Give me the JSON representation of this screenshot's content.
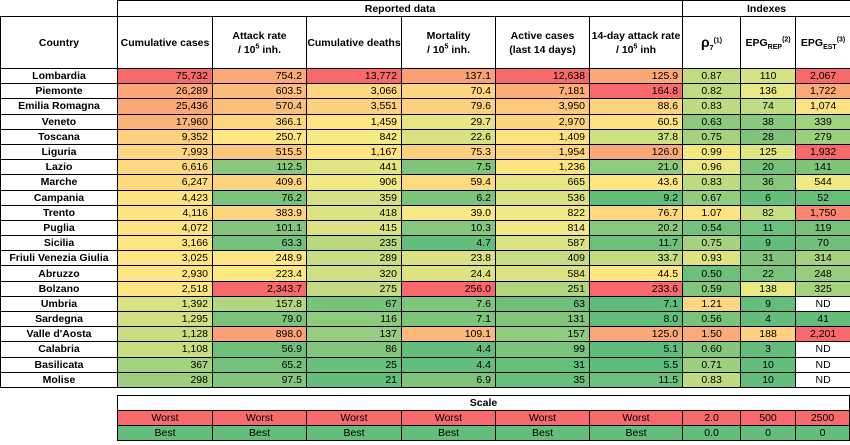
{
  "header": {
    "group_reported": "Reported data",
    "group_indexes": "Indexes",
    "country": "Country",
    "cum_cases": "Cumulative cases",
    "attack_rate": "Attack rate",
    "attack_rate_unit_pre": "/ 10",
    "attack_rate_unit_sup": "5",
    "attack_rate_unit_post": " inh.",
    "cum_deaths": "Cumulative deaths",
    "mortality": "Mortality",
    "mortality_unit_pre": "/ 10",
    "mortality_unit_sup": "5",
    "mortality_unit_post": " inh.",
    "active_cases": "Active cases",
    "active_cases_sub": "(last 14 days)",
    "attack14": "14-day attack rate",
    "attack14_unit_pre": "/ 10",
    "attack14_unit_sup": "5",
    "attack14_unit_post": " inh",
    "rho": "ρ",
    "rho_sub": "7",
    "rho_sup": "(1)",
    "epg_rep": "EPG",
    "epg_rep_sub": "REP",
    "epg_rep_sup": "(2)",
    "epg_est": "EPG",
    "epg_est_sub": "EST",
    "epg_est_sup": "(3)"
  },
  "rows": [
    {
      "country": "Lombardia",
      "cells": [
        [
          "75,732",
          "#f8696b"
        ],
        [
          "754.2",
          "#fbaa77"
        ],
        [
          "13,772",
          "#f8696b"
        ],
        [
          "137.1",
          "#faa075"
        ],
        [
          "12,638",
          "#f8696b"
        ],
        [
          "125.9",
          "#fba877"
        ],
        [
          "0.87",
          "#c2dc80"
        ],
        [
          "110",
          "#d6e382"
        ],
        [
          "2,067",
          "#f8696b"
        ]
      ]
    },
    {
      "country": "Piemonte",
      "cells": [
        [
          "26,289",
          "#fba777"
        ],
        [
          "603.5",
          "#fcbc7b"
        ],
        [
          "3,066",
          "#fed880"
        ],
        [
          "70.4",
          "#fed580"
        ],
        [
          "7,181",
          "#fbac78"
        ],
        [
          "164.8",
          "#f8696b"
        ],
        [
          "0.82",
          "#c0db80"
        ],
        [
          "136",
          "#e7e983"
        ],
        [
          "1,722",
          "#fbaa77"
        ]
      ]
    },
    {
      "country": "Emilia Romagna",
      "cells": [
        [
          "25,436",
          "#fba877"
        ],
        [
          "570.4",
          "#fdc07c"
        ],
        [
          "3,551",
          "#fdd17f"
        ],
        [
          "79.6",
          "#fdd07f"
        ],
        [
          "3,950",
          "#fdca7d"
        ],
        [
          "88.6",
          "#fed47f"
        ],
        [
          "0.83",
          "#bfdb80"
        ],
        [
          "74",
          "#c2dd81"
        ],
        [
          "1,074",
          "#fde282"
        ]
      ]
    },
    {
      "country": "Veneto",
      "cells": [
        [
          "17,960",
          "#fcb37a"
        ],
        [
          "366.1",
          "#fed880"
        ],
        [
          "1,459",
          "#ffe683"
        ],
        [
          "29.7",
          "#e8e683"
        ],
        [
          "2,970",
          "#fed481"
        ],
        [
          "60.5",
          "#ffe383"
        ],
        [
          "0.63",
          "#8cc97d"
        ],
        [
          "38",
          "#8ac97d"
        ],
        [
          "339",
          "#a3d27f"
        ]
      ]
    },
    {
      "country": "Toscana",
      "cells": [
        [
          "9,352",
          "#fed07f"
        ],
        [
          "250.7",
          "#ffe683"
        ],
        [
          "842",
          "#f5ea84"
        ],
        [
          "22.6",
          "#d8e282"
        ],
        [
          "1,409",
          "#fde282"
        ],
        [
          "37.8",
          "#cfe081"
        ],
        [
          "0.75",
          "#a6d27f"
        ],
        [
          "28",
          "#80c57b"
        ],
        [
          "279",
          "#9bcf7e"
        ]
      ]
    },
    {
      "country": "Liguria",
      "cells": [
        [
          "7,993",
          "#fed580"
        ],
        [
          "515.5",
          "#fdc87d"
        ],
        [
          "1,167",
          "#fde682"
        ],
        [
          "75.3",
          "#fed17f"
        ],
        [
          "1,954",
          "#fed681"
        ],
        [
          "126.0",
          "#fba877"
        ],
        [
          "0.99",
          "#f3e983"
        ],
        [
          "125",
          "#e1e783"
        ],
        [
          "1,932",
          "#f8696b"
        ]
      ]
    },
    {
      "country": "Lazio",
      "cells": [
        [
          "6,616",
          "#fed981"
        ],
        [
          "112.5",
          "#8ac97d"
        ],
        [
          "441",
          "#e1e582"
        ],
        [
          "7.5",
          "#7fc57b"
        ],
        [
          "1,236",
          "#fde382"
        ],
        [
          "21.0",
          "#8dcb7d"
        ],
        [
          "0.96",
          "#eae784"
        ],
        [
          "20",
          "#78c27b"
        ],
        [
          "141",
          "#7dc47b"
        ]
      ]
    },
    {
      "country": "Marche",
      "cells": [
        [
          "6,247",
          "#fed981"
        ],
        [
          "409.6",
          "#fed480"
        ],
        [
          "906",
          "#f3e984"
        ],
        [
          "59.4",
          "#fedb81"
        ],
        [
          "665",
          "#e8e683"
        ],
        [
          "43.6",
          "#ffe683"
        ],
        [
          "0.83",
          "#bfdb80"
        ],
        [
          "36",
          "#86c87c"
        ],
        [
          "544",
          "#f1e984"
        ]
      ]
    },
    {
      "country": "Campania",
      "cells": [
        [
          "4,423",
          "#fde382"
        ],
        [
          "76.2",
          "#7ac37b"
        ],
        [
          "359",
          "#d5e182"
        ],
        [
          "6.2",
          "#7cc47b"
        ],
        [
          "536",
          "#d9e282"
        ],
        [
          "9.2",
          "#63be7b"
        ],
        [
          "0.67",
          "#93cb7e"
        ],
        [
          "6",
          "#63be7b"
        ],
        [
          "52",
          "#67bf7b"
        ]
      ]
    },
    {
      "country": "Trento",
      "cells": [
        [
          "4,116",
          "#fde382"
        ],
        [
          "383.9",
          "#fed680"
        ],
        [
          "418",
          "#dde382"
        ],
        [
          "39.0",
          "#f8e984"
        ],
        [
          "822",
          "#f2e884"
        ],
        [
          "76.7",
          "#ffd880"
        ],
        [
          "1.07",
          "#fee382"
        ],
        [
          "82",
          "#c6de81"
        ],
        [
          "1,750",
          "#f9866f"
        ]
      ]
    },
    {
      "country": "Puglia",
      "cells": [
        [
          "4,072",
          "#fde382"
        ],
        [
          "101.1",
          "#83c67c"
        ],
        [
          "415",
          "#dde382"
        ],
        [
          "10.3",
          "#87c87c"
        ],
        [
          "814",
          "#f2e884"
        ],
        [
          "20.2",
          "#89c97c"
        ],
        [
          "0.54",
          "#73c17b"
        ],
        [
          "11",
          "#6bc07b"
        ],
        [
          "119",
          "#77c27b"
        ]
      ]
    },
    {
      "country": "Sicilia",
      "cells": [
        [
          "3,166",
          "#fde582"
        ],
        [
          "63.3",
          "#73c17b"
        ],
        [
          "235",
          "#b8d980"
        ],
        [
          "4.7",
          "#63be7b"
        ],
        [
          "587",
          "#dce382"
        ],
        [
          "11.7",
          "#6bc07b"
        ],
        [
          "0.75",
          "#a6d27f"
        ],
        [
          "9",
          "#63be7b"
        ],
        [
          "70",
          "#6fc07b"
        ]
      ]
    },
    {
      "country": "Friuli Venezia Giulia",
      "cells": [
        [
          "3,025",
          "#fde682"
        ],
        [
          "248.9",
          "#ffe683"
        ],
        [
          "289",
          "#c9dd81"
        ],
        [
          "23.8",
          "#dbe282"
        ],
        [
          "409",
          "#c7dd81"
        ],
        [
          "33.7",
          "#c3dc81"
        ],
        [
          "0.93",
          "#dee382"
        ],
        [
          "31",
          "#80c57b"
        ],
        [
          "314",
          "#a6d27f"
        ]
      ]
    },
    {
      "country": "Abruzzo",
      "cells": [
        [
          "2,930",
          "#fde682"
        ],
        [
          "223.4",
          "#fde982"
        ],
        [
          "320",
          "#d0df81"
        ],
        [
          "24.4",
          "#dde382"
        ],
        [
          "584",
          "#dce382"
        ],
        [
          "44.5",
          "#ffe683"
        ],
        [
          "0.50",
          "#6cc07b"
        ],
        [
          "22",
          "#7ac37b"
        ],
        [
          "248",
          "#96cd7e"
        ]
      ]
    },
    {
      "country": "Bolzano",
      "cells": [
        [
          "2,518",
          "#fde682"
        ],
        [
          "2,343.7",
          "#f8696b"
        ],
        [
          "275",
          "#c4dc81"
        ],
        [
          "256.0",
          "#f8696b"
        ],
        [
          "251",
          "#b1d67f"
        ],
        [
          "233.6",
          "#f8696b"
        ],
        [
          "0.59",
          "#81c67c"
        ],
        [
          "138",
          "#e7e983"
        ],
        [
          "325",
          "#a7d27f"
        ]
      ]
    },
    {
      "country": "Umbria",
      "cells": [
        [
          "1,392",
          "#d8e282"
        ],
        [
          "157.8",
          "#b3d780"
        ],
        [
          "67",
          "#78c37b"
        ],
        [
          "7.6",
          "#7fc57b"
        ],
        [
          "63",
          "#70c07b"
        ],
        [
          "7.1",
          "#5fbd7b"
        ],
        [
          "1.21",
          "#fed881"
        ],
        [
          "9",
          "#63be7b"
        ],
        null
      ]
    },
    {
      "country": "Sardegna",
      "cells": [
        [
          "1,295",
          "#d3e081"
        ],
        [
          "79.0",
          "#7bc37b"
        ],
        [
          "116",
          "#8ecb7d"
        ],
        [
          "7.1",
          "#7ec57b"
        ],
        [
          "131",
          "#85c67c"
        ],
        [
          "8.0",
          "#62be7b"
        ],
        [
          "0.56",
          "#7ac37b"
        ],
        [
          "4",
          "#63be7b"
        ],
        [
          "41",
          "#63be7b"
        ]
      ]
    },
    {
      "country": "Valle d'Aosta",
      "cells": [
        [
          "1,128",
          "#cbdd81"
        ],
        [
          "898.0",
          "#fba173"
        ],
        [
          "137",
          "#97cd7e"
        ],
        [
          "109.1",
          "#fbb97a"
        ],
        [
          "157",
          "#8fcb7d"
        ],
        [
          "125.0",
          "#fba877"
        ],
        [
          "1.50",
          "#fbab77"
        ],
        [
          "188",
          "#fed080"
        ],
        [
          "2,201",
          "#f8696b"
        ]
      ]
    },
    {
      "country": "Calabria",
      "cells": [
        [
          "1,108",
          "#cbdd81"
        ],
        [
          "56.9",
          "#6fc07b"
        ],
        [
          "86",
          "#81c67c"
        ],
        [
          "4.4",
          "#63be7b"
        ],
        [
          "99",
          "#7cc47b"
        ],
        [
          "5.1",
          "#5dbd7b"
        ],
        [
          "0.60",
          "#83c67c"
        ],
        [
          "3",
          "#63be7b"
        ],
        null
      ]
    },
    {
      "country": "Basilicata",
      "cells": [
        [
          "367",
          "#a2d17f"
        ],
        [
          "65.2",
          "#74c17b"
        ],
        [
          "25",
          "#66bf7b"
        ],
        [
          "4.4",
          "#63be7b"
        ],
        [
          "31",
          "#66bf7b"
        ],
        [
          "5.5",
          "#5dbd7b"
        ],
        [
          "0.71",
          "#9ccf7e"
        ],
        [
          "10",
          "#63be7b"
        ],
        null
      ]
    },
    {
      "country": "Molise",
      "cells": [
        [
          "298",
          "#9ecf7e"
        ],
        [
          "97.5",
          "#81c67c"
        ],
        [
          "21",
          "#64be7b"
        ],
        [
          "6.9",
          "#7ec57b"
        ],
        [
          "35",
          "#68bf7b"
        ],
        [
          "11.5",
          "#6bc07b"
        ],
        [
          "0.83",
          "#bfdb80"
        ],
        [
          "10",
          "#63be7b"
        ],
        null
      ]
    }
  ],
  "nd_label": "ND",
  "scale": {
    "title": "Scale",
    "worst_label": "Worst",
    "best_label": "Best",
    "worst_color": "#f8696b",
    "best_color": "#63be7b",
    "rho_worst": "2.0",
    "rho_best": "0.0",
    "rep_worst": "500",
    "rep_best": "0",
    "est_worst": "2500",
    "est_best": "0"
  }
}
